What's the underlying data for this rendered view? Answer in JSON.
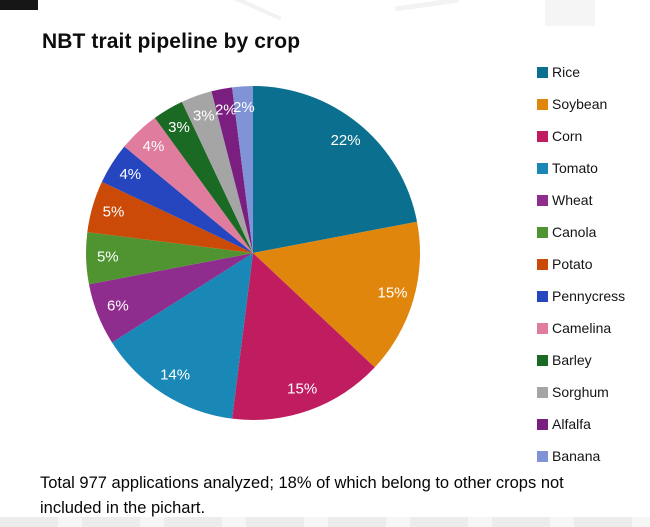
{
  "title": "NBT trait pipeline by crop",
  "caption": "Total 977 applications analyzed; 18% of which belong to other crops not included in the pichart.",
  "chart_data": {
    "type": "pie",
    "title": "NBT trait pipeline by crop",
    "categories": [
      "Rice",
      "Soybean",
      "Corn",
      "Tomato",
      "Wheat",
      "Canola",
      "Potato",
      "Pennycress",
      "Camelina",
      "Barley",
      "Sorghum",
      "Alfalfa",
      "Banana"
    ],
    "values": [
      22,
      15,
      15,
      14,
      6,
      5,
      5,
      4,
      4,
      3,
      3,
      2,
      2
    ],
    "unit": "%",
    "colors": [
      "#0B7090",
      "#E0860D",
      "#BF1D5F",
      "#1988B6",
      "#8E2D8E",
      "#4F9430",
      "#CC4A08",
      "#2546BE",
      "#E07C9D",
      "#1A6A24",
      "#A5A5A5",
      "#7A1F80",
      "#8093D6"
    ],
    "label_format": "{value}%",
    "start_angle_deg": 0,
    "direction": "clockwise",
    "legend_position": "right",
    "label_text_color": "#ffffff",
    "note": "Total 977 applications analyzed; 18% of which belong to other crops not included in the pichart."
  }
}
